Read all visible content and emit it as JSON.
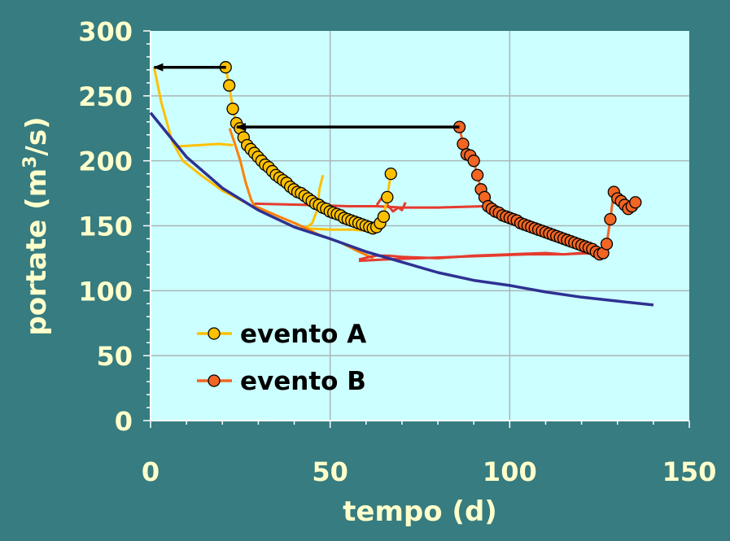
{
  "chart_data": {
    "type": "line",
    "xlabel": "tempo (d)",
    "ylabel": "portate (m³/s)",
    "xlim": [
      0,
      150
    ],
    "ylim": [
      0,
      300
    ],
    "x_ticks": [
      0,
      50,
      100,
      150
    ],
    "y_ticks": [
      0,
      50,
      100,
      150,
      200,
      250,
      300
    ],
    "grid": true,
    "legend_position": "bottom-left",
    "colors": {
      "background": "#367c80",
      "plot_area": "#ccffff",
      "grid": "#a9b6b8",
      "tick_text": "#ffffcc",
      "legend_text": "#000000",
      "arrow": "#000000"
    },
    "series": [
      {
        "name": "evento A",
        "color": "#ffc000",
        "marker": "circle",
        "x": [
          20.9,
          21.9,
          22.9,
          23.9,
          24.9,
          25.9,
          26.9,
          27.9,
          28.9,
          29.9,
          30.9,
          31.9,
          32.9,
          33.9,
          34.9,
          35.9,
          36.9,
          37.9,
          38.9,
          39.9,
          40.9,
          41.9,
          42.9,
          43.9,
          44.9,
          45.9,
          46.9,
          47.9,
          48.9,
          49.9,
          50.9,
          51.9,
          52.9,
          53.9,
          54.9,
          55.9,
          56.9,
          57.9,
          58.9,
          59.9,
          60.9,
          61.9,
          62.9,
          63.9,
          64.9,
          65.9,
          66.9
        ],
        "y": [
          272,
          258,
          240,
          229,
          225,
          218,
          212,
          209,
          206,
          203,
          200,
          197,
          195,
          192,
          189,
          187,
          185,
          183,
          180,
          178,
          176,
          175,
          173,
          171,
          169,
          167,
          166,
          164,
          163,
          161,
          160,
          159,
          158,
          156,
          155,
          154,
          153,
          152,
          151,
          150,
          149,
          148,
          149,
          152,
          157,
          172,
          190
        ]
      },
      {
        "name": "evento B",
        "color": "#f26522",
        "marker": "circle",
        "x": [
          86,
          87,
          88,
          89,
          90,
          91,
          92,
          93,
          94,
          95,
          96,
          97,
          98,
          99,
          100,
          101,
          102,
          103,
          104,
          105,
          106,
          107,
          108,
          109,
          110,
          111,
          112,
          113,
          114,
          115,
          116,
          117,
          118,
          119,
          120,
          121,
          122,
          123,
          124,
          125,
          126,
          127,
          128,
          129,
          130,
          131,
          132,
          133,
          134,
          135
        ],
        "y": [
          226,
          213,
          205,
          204,
          200,
          189,
          178,
          172,
          165,
          163,
          161,
          160,
          158,
          157,
          156,
          155,
          154,
          152,
          151,
          150,
          149,
          148,
          147,
          146,
          145,
          144,
          143,
          142,
          141,
          140,
          139,
          138,
          137,
          136,
          135,
          134,
          133,
          132,
          130,
          128,
          129,
          136,
          155,
          176,
          171,
          169,
          166,
          163,
          165,
          168
        ]
      },
      {
        "name": "",
        "color": "#2e3192",
        "marker": "none",
        "x": [
          0,
          10,
          20,
          30,
          40,
          50,
          60,
          70,
          80,
          90,
          100,
          110,
          120,
          130,
          140
        ],
        "y": [
          237,
          203,
          179,
          162,
          149,
          140,
          130,
          122,
          114,
          108,
          104,
          99,
          95,
          92,
          89
        ]
      }
    ],
    "extra_lines": [
      {
        "color": "#ffc000",
        "x": [
          1,
          3,
          6,
          9,
          14,
          20,
          27,
          33,
          38,
          41,
          43,
          45,
          46.5,
          47,
          48
        ],
        "y": [
          272,
          245,
          215,
          200,
          189,
          177,
          167,
          158,
          152,
          148,
          148,
          152,
          163,
          178,
          189
        ]
      },
      {
        "color": "#ffc000",
        "x": [
          43,
          50,
          56,
          61,
          63
        ],
        "y": [
          148,
          147,
          147,
          146,
          148
        ]
      },
      {
        "color": "#ffc000",
        "x": [
          7,
          13,
          19,
          23
        ],
        "y": [
          211,
          212,
          213,
          212
        ]
      },
      {
        "color": "#ff7f00",
        "x": [
          22,
          23.5,
          25,
          26.5,
          28,
          29,
          30,
          35,
          41
        ],
        "y": [
          225,
          213,
          200,
          183,
          170,
          165,
          164,
          158,
          151
        ]
      },
      {
        "color": "#e63b2e",
        "x": [
          29,
          45,
          55,
          63,
          70,
          80,
          93
        ],
        "y": [
          167,
          166,
          165,
          165,
          164,
          164,
          165
        ]
      },
      {
        "color": "#e63b2e",
        "x": [
          63,
          64.5,
          66,
          67.5,
          69,
          70,
          71
        ],
        "y": [
          166,
          172,
          166,
          161,
          164,
          162,
          168
        ]
      },
      {
        "color": "#ff7f00",
        "x": [
          41,
          47,
          53,
          58,
          62
        ],
        "y": [
          151,
          143,
          137,
          130,
          125
        ]
      },
      {
        "color": "#e63b2e",
        "x": [
          58,
          61,
          63,
          66,
          70,
          80,
          90,
          100,
          110,
          115,
          120,
          125
        ],
        "y": [
          124,
          126,
          127,
          127,
          126,
          125,
          127,
          128,
          129,
          128,
          129,
          128
        ]
      },
      {
        "color": "#e63b2e",
        "x": [
          58,
          65,
          75,
          85,
          95,
          105,
          115,
          123
        ],
        "y": [
          123,
          124,
          125,
          126,
          127,
          128,
          128,
          129
        ]
      }
    ],
    "arrows": [
      {
        "from": [
          21,
          272
        ],
        "to": [
          1,
          272
        ]
      },
      {
        "from": [
          86,
          226
        ],
        "to": [
          24,
          226
        ]
      }
    ]
  }
}
